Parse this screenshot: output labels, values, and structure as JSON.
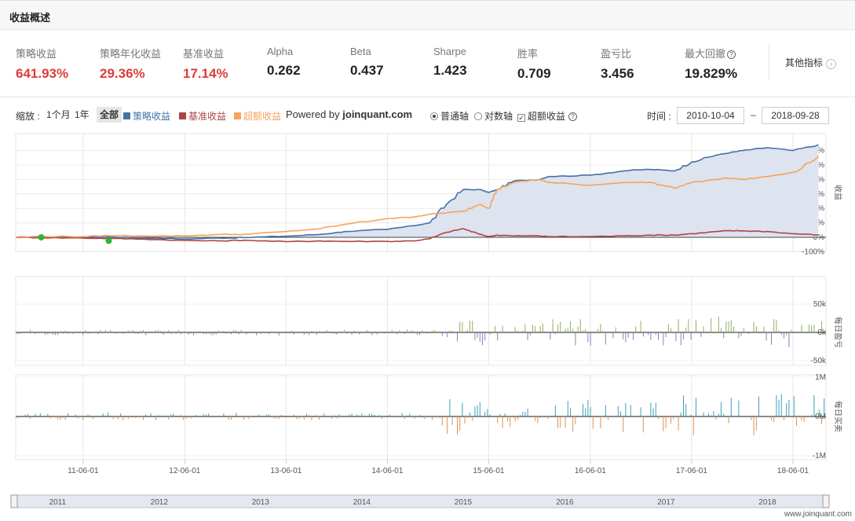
{
  "header": {
    "title": "收益概述"
  },
  "metrics": [
    {
      "label": "策略收益",
      "value": "641.93%",
      "color": "red"
    },
    {
      "label": "策略年化收益",
      "value": "29.36%",
      "color": "red"
    },
    {
      "label": "基准收益",
      "value": "17.14%",
      "color": "red"
    },
    {
      "label": "Alpha",
      "value": "0.262",
      "color": "black"
    },
    {
      "label": "Beta",
      "value": "0.437",
      "color": "black"
    },
    {
      "label": "Sharpe",
      "value": "1.423",
      "color": "black"
    },
    {
      "label": "胜率",
      "value": "0.709",
      "color": "black"
    },
    {
      "label": "盈亏比",
      "value": "3.456",
      "color": "black"
    },
    {
      "label": "最大回撤",
      "value": "19.829%",
      "color": "black",
      "help_icon": "question-circle-icon"
    }
  ],
  "more_metrics": {
    "label": "其他指标",
    "icon": "chevron-right-circle-icon"
  },
  "toolbar": {
    "zoom_label": "缩放 :",
    "zoom_options": [
      "1个月",
      "1年",
      "全部"
    ],
    "zoom_selected": "全部",
    "legend": [
      {
        "name": "策略收益",
        "color": "#4572a7"
      },
      {
        "name": "基准收益",
        "color": "#aa4643"
      },
      {
        "name": "超额收益",
        "color": "#f7a35c"
      }
    ],
    "powered_prefix": "Powered by ",
    "powered_brand": "joinquant.com",
    "axis_modes": [
      "普通轴",
      "对数轴"
    ],
    "axis_mode_selected": "普通轴",
    "excess_checkbox_label": "超额收益",
    "excess_checked": true,
    "time_label": "时间 :",
    "date_from": "2010-10-04",
    "date_sep": "–",
    "date_to": "2018-09-28"
  },
  "chart_data": [
    {
      "type": "line",
      "title": "",
      "ylabel": "收益",
      "y_tick_labels": [
        "600%",
        "500%",
        "400%",
        "300%",
        "200%",
        "100%",
        "0%",
        "-100%"
      ],
      "ylim": [
        -100,
        650
      ],
      "x": [
        "2010-10",
        "2011-01",
        "2011-06",
        "2011-09",
        "2012-01",
        "2012-06",
        "2012-10",
        "2013-01",
        "2013-06",
        "2013-10",
        "2014-01",
        "2014-06",
        "2014-09",
        "2014-11",
        "2015-01",
        "2015-03",
        "2015-05",
        "2015-06",
        "2015-07",
        "2015-09",
        "2015-12",
        "2016-01",
        "2016-06",
        "2016-10",
        "2017-01",
        "2017-04",
        "2017-06",
        "2017-09",
        "2017-10",
        "2017-12",
        "2018-03",
        "2018-06",
        "2018-09"
      ],
      "series": [
        {
          "name": "策略收益",
          "color": "#4572a7",
          "values": [
            0,
            5,
            0,
            3,
            -4,
            -12,
            -5,
            -2,
            8,
            20,
            40,
            55,
            80,
            100,
            230,
            330,
            330,
            310,
            330,
            390,
            400,
            420,
            430,
            460,
            470,
            460,
            520,
            570,
            580,
            600,
            620,
            600,
            640
          ]
        },
        {
          "name": "基准收益",
          "color": "#aa4643",
          "values": [
            0,
            -2,
            -5,
            -8,
            -12,
            -22,
            -25,
            -20,
            -30,
            -25,
            -28,
            -28,
            -25,
            -10,
            35,
            60,
            20,
            5,
            15,
            10,
            10,
            5,
            5,
            10,
            15,
            15,
            25,
            40,
            45,
            45,
            40,
            25,
            17
          ]
        },
        {
          "name": "超额收益",
          "color": "#f7a35c",
          "values": [
            0,
            7,
            5,
            12,
            10,
            10,
            20,
            20,
            40,
            60,
            90,
            130,
            140,
            160,
            170,
            180,
            230,
            200,
            330,
            380,
            400,
            380,
            360,
            380,
            380,
            340,
            380,
            400,
            410,
            400,
            420,
            450,
            560
          ]
        }
      ],
      "markers": [
        {
          "x": "2011-01",
          "value": 0
        },
        {
          "x": "2011-09",
          "value": -24
        }
      ],
      "grid": true
    },
    {
      "type": "bar",
      "title": "",
      "ylabel": "每日盈亏",
      "y_tick_labels": [
        "50k",
        "0k",
        "-50k"
      ],
      "ylim": [
        -50,
        50
      ],
      "colors": {
        "positive": "#90b060",
        "negative": "#8a80b8"
      }
    },
    {
      "type": "bar",
      "title": "",
      "ylabel": "每日买卖",
      "y_tick_labels": [
        "1M",
        "0M",
        "-1M"
      ],
      "ylim": [
        -1,
        1
      ],
      "colors": {
        "positive": "#3ca0b8",
        "negative": "#e09050"
      }
    }
  ],
  "x_axis": {
    "tick_labels": [
      "11-06-01",
      "12-06-01",
      "13-06-01",
      "14-06-01",
      "15-06-01",
      "16-06-01",
      "17-06-01",
      "18-06-01"
    ]
  },
  "navigator": {
    "year_labels": [
      "2011",
      "2012",
      "2013",
      "2014",
      "2015",
      "2016",
      "2017",
      "2018"
    ]
  },
  "watermark": "www.joinquant.com"
}
